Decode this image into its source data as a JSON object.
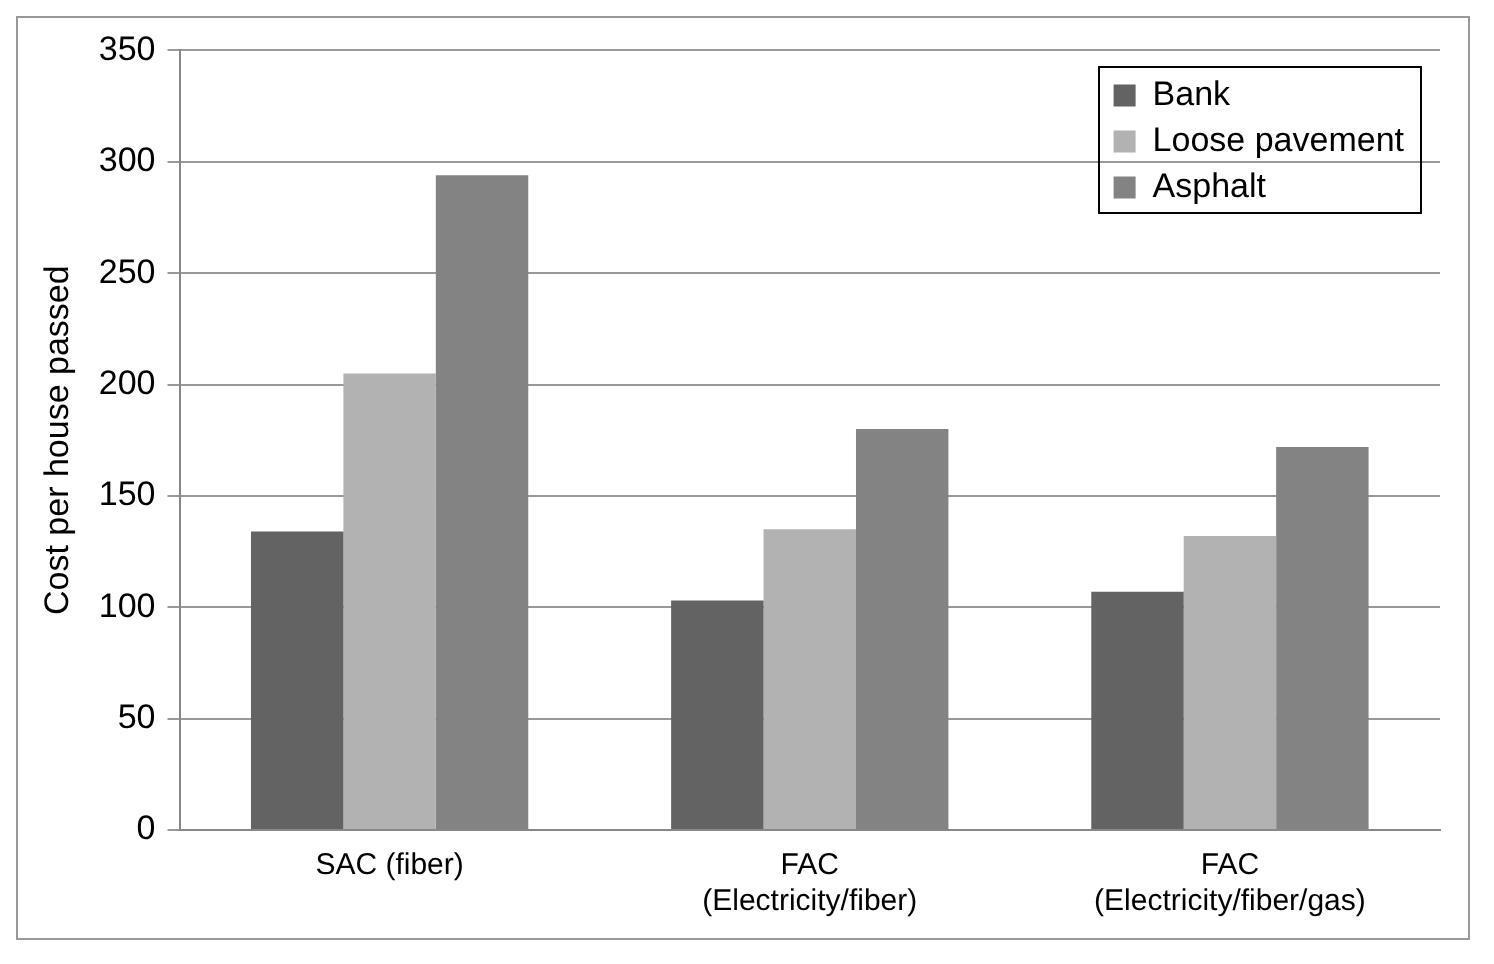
{
  "chart_data": {
    "type": "bar",
    "ylabel": "Cost per house passed",
    "categories": [
      "SAC (fiber)",
      "FAC (Electricity/fiber)",
      "FAC (Electricity/fiber/gas)"
    ],
    "series": [
      {
        "name": "Bank",
        "color": "#636363",
        "values": [
          134,
          103,
          107
        ]
      },
      {
        "name": "Loose pavement",
        "color": "#b2b2b2",
        "values": [
          205,
          135,
          132
        ]
      },
      {
        "name": "Asphalt",
        "color": "#838383",
        "values": [
          294,
          180,
          172
        ]
      }
    ],
    "ylim": [
      0,
      350
    ],
    "yticks": [
      0,
      50,
      100,
      150,
      200,
      250,
      300,
      350
    ],
    "grid": "y",
    "legend": "top right"
  }
}
